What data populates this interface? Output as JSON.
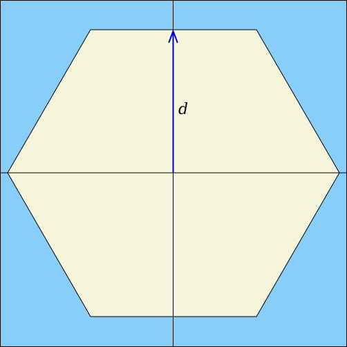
{
  "diagram": {
    "arrow_label": "d",
    "colors": {
      "background": "#87CEFA",
      "hexagon_fill": "#F5F5DC",
      "frame_stroke": "#000000",
      "axis_stroke": "#000000",
      "arrow": "#0000CC",
      "label": "#000000"
    }
  }
}
